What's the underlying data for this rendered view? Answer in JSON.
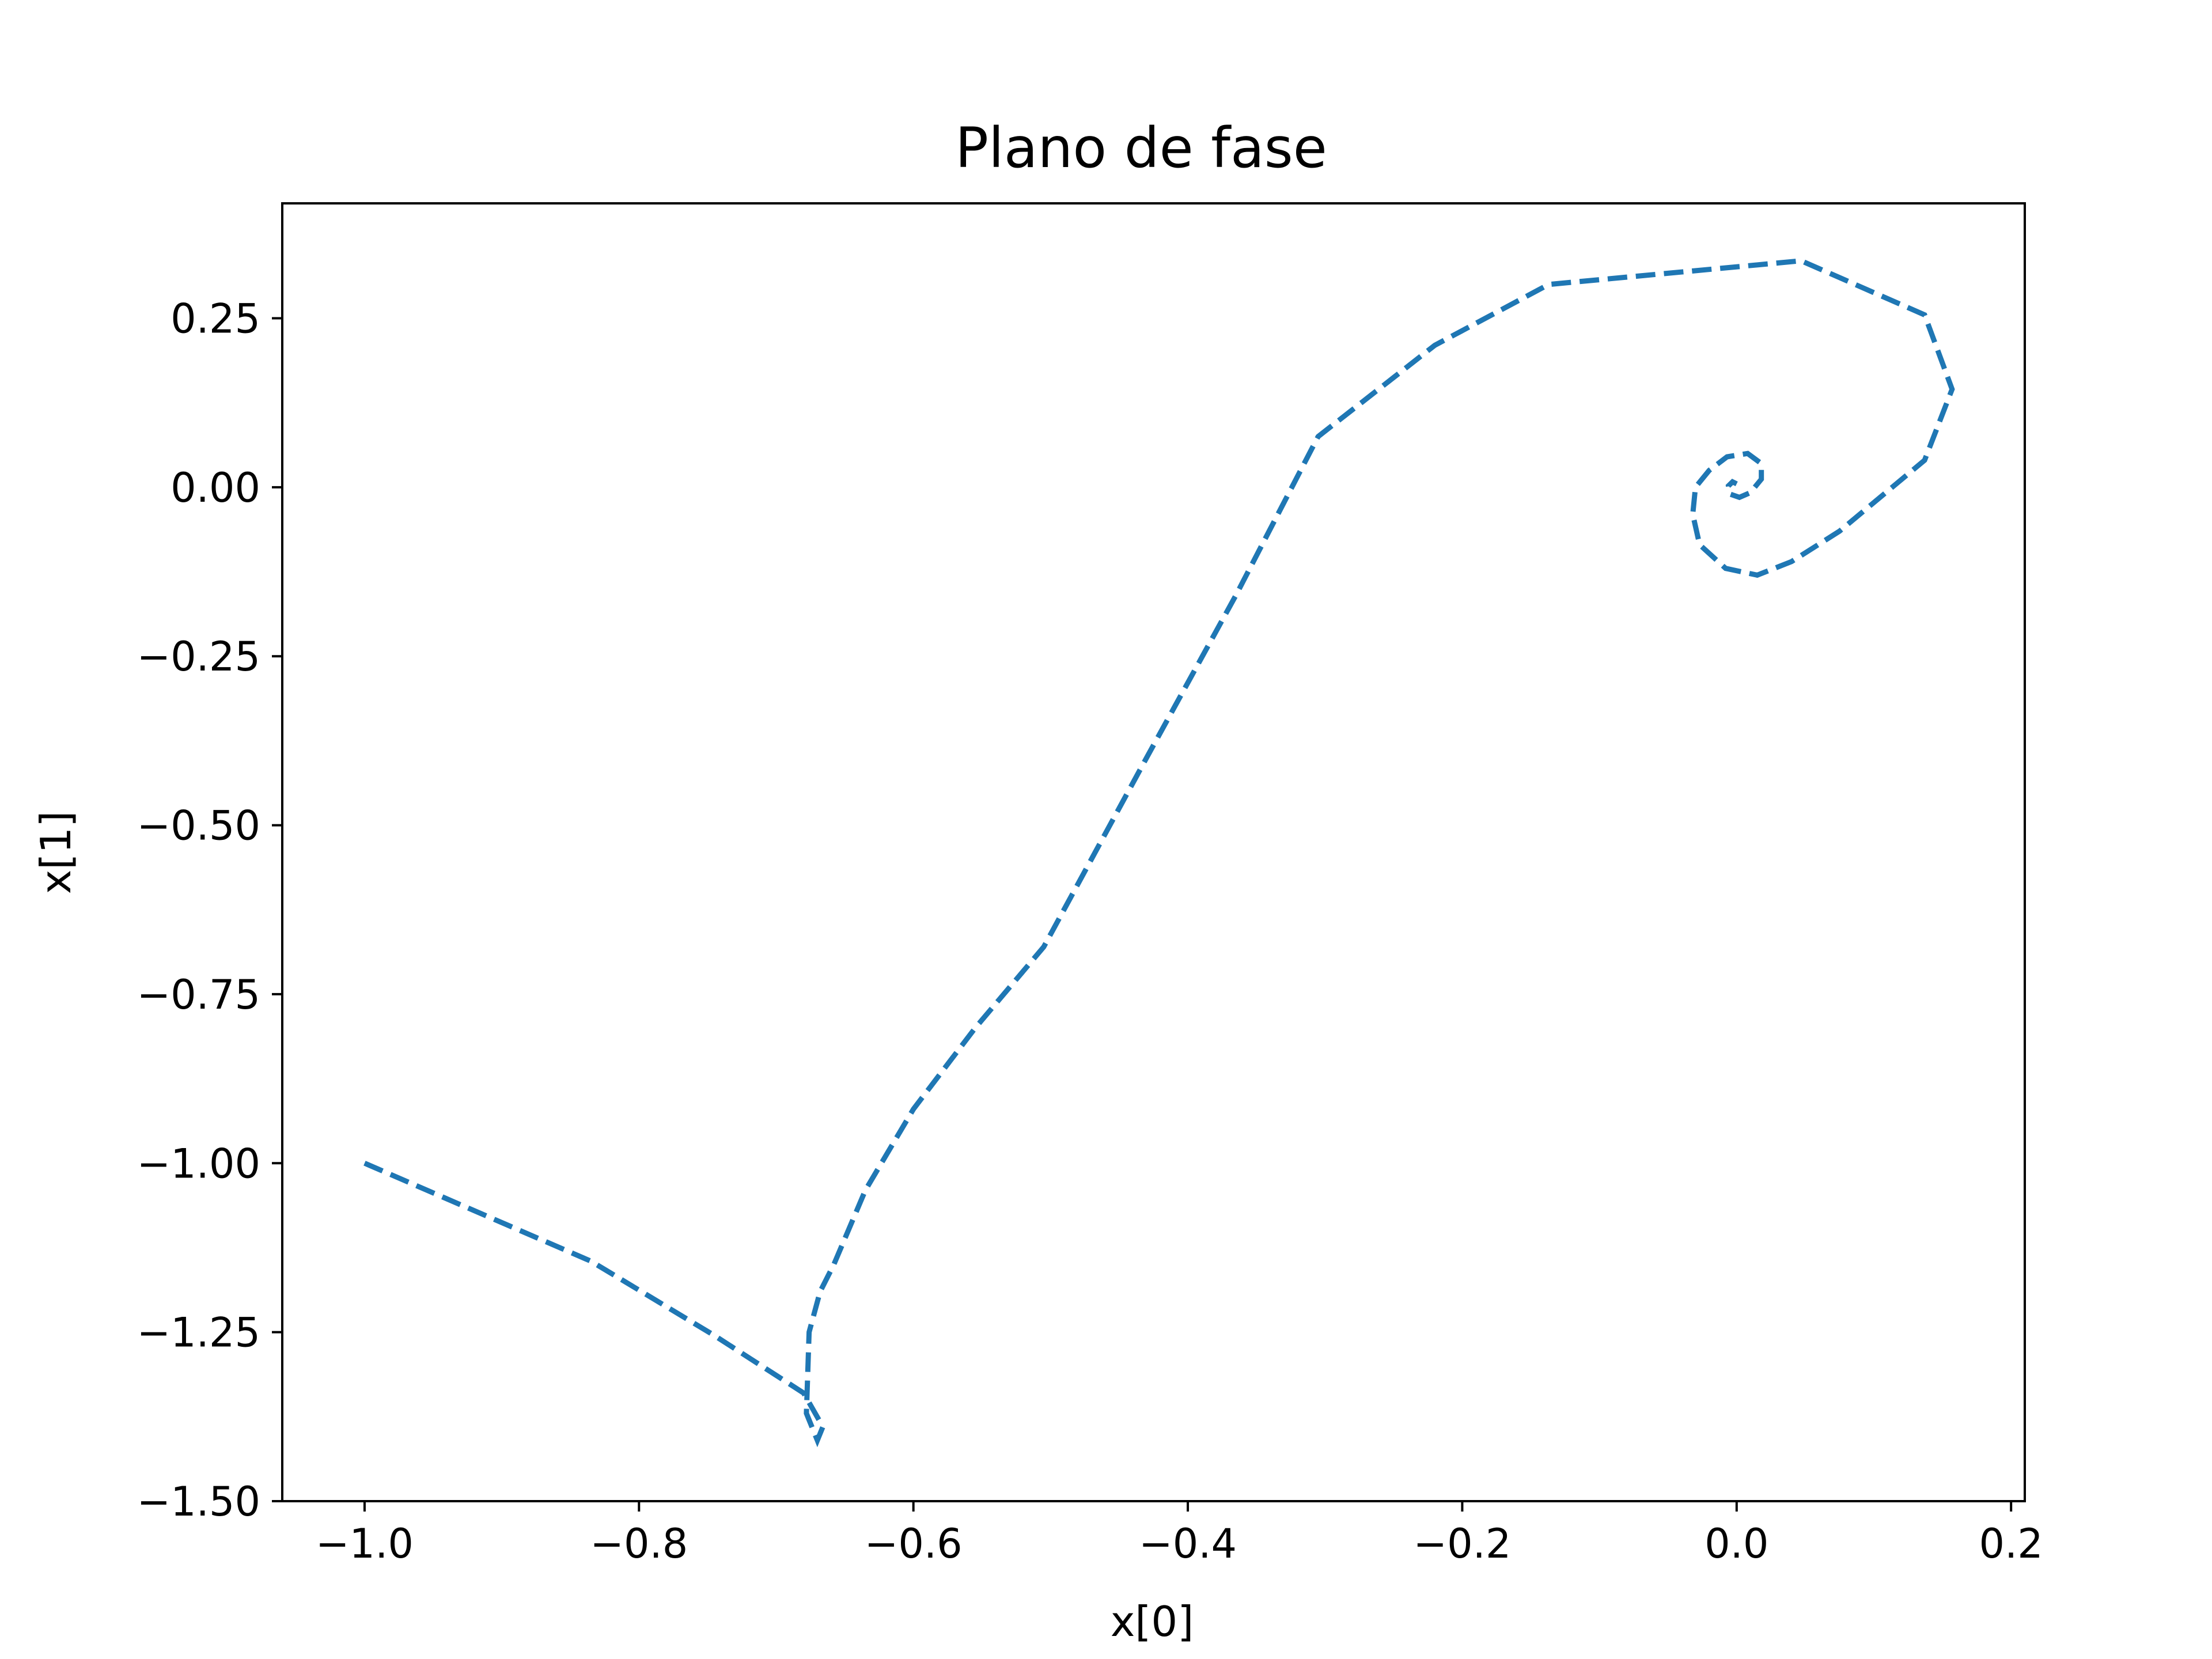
{
  "chart_data": {
    "type": "line",
    "title": "Plano de fase",
    "xlabel": "x[0]",
    "ylabel": "x[1]",
    "xlim": [
      -1.06,
      0.21
    ],
    "ylim": [
      -1.5,
      0.42
    ],
    "xticks": [
      -1.0,
      -0.8,
      -0.6,
      -0.4,
      -0.2,
      0.0,
      0.2
    ],
    "xtick_labels": [
      "−1.0",
      "−0.8",
      "−0.6",
      "−0.4",
      "−0.2",
      "0.0",
      "0.2"
    ],
    "yticks": [
      0.25,
      0.0,
      -0.25,
      -0.5,
      -0.75,
      -1.0,
      -1.25,
      -1.5
    ],
    "ytick_labels": [
      "0.25",
      "0.00",
      "−0.25",
      "−0.50",
      "−0.75",
      "−1.00",
      "−1.25",
      "−1.50"
    ],
    "grid": false,
    "line_style": "dashed",
    "series": [
      {
        "color": "#1f77b4",
        "x": [
          -1.0,
          -0.835,
          -0.745,
          -0.68,
          -0.666,
          -0.67,
          -0.678,
          -0.676,
          -0.668,
          -0.658,
          -0.635,
          -0.6,
          -0.555,
          -0.505,
          -0.43,
          -0.365,
          -0.305,
          -0.22,
          -0.137,
          0.047,
          0.137,
          0.157,
          0.137,
          0.075,
          0.04,
          0.015,
          -0.008,
          -0.027,
          -0.032,
          -0.03,
          -0.02,
          -0.007,
          0.008,
          0.018,
          0.018,
          0.01,
          0.002,
          -0.005,
          -0.006,
          -0.003,
          0.0
        ],
        "y": [
          -1.0,
          -1.145,
          -1.255,
          -1.34,
          -1.39,
          -1.41,
          -1.37,
          -1.25,
          -1.19,
          -1.15,
          -1.04,
          -0.92,
          -0.8,
          -0.68,
          -0.4,
          -0.16,
          0.075,
          0.21,
          0.3,
          0.335,
          0.255,
          0.145,
          0.04,
          -0.065,
          -0.11,
          -0.13,
          -0.12,
          -0.085,
          -0.04,
          0.0,
          0.025,
          0.045,
          0.05,
          0.035,
          0.012,
          -0.008,
          -0.015,
          -0.01,
          0.002,
          0.008,
          0.005
        ]
      }
    ]
  }
}
